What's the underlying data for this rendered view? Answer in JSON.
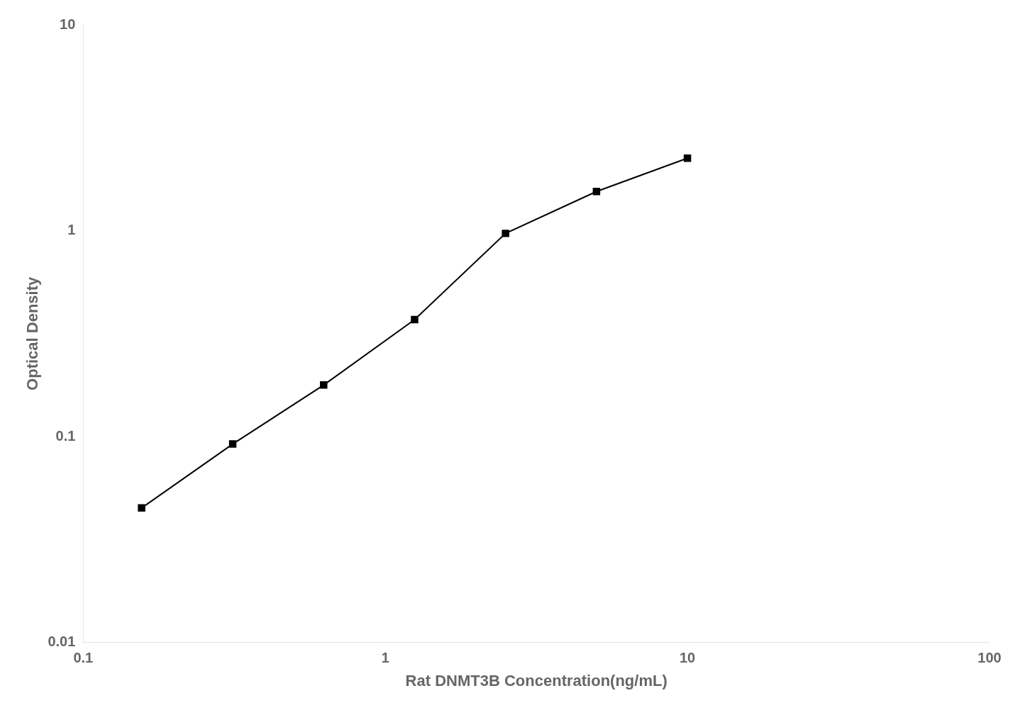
{
  "chart_data": {
    "type": "line",
    "x": [
      0.156,
      0.3125,
      0.625,
      1.25,
      2.5,
      5.0,
      10.0
    ],
    "values": [
      0.045,
      0.092,
      0.178,
      0.37,
      0.97,
      1.55,
      2.25
    ],
    "xlabel": "Rat DNMT3B Concentration(ng/mL)",
    "ylabel": "Optical Density",
    "xlim": [
      0.1,
      100
    ],
    "ylim": [
      0.01,
      10
    ],
    "xticks": [
      0.1,
      1,
      10,
      100
    ],
    "yticks": [
      0.01,
      0.1,
      1,
      10
    ],
    "log": true,
    "grid": false,
    "color": "#000000",
    "marker": "square"
  }
}
